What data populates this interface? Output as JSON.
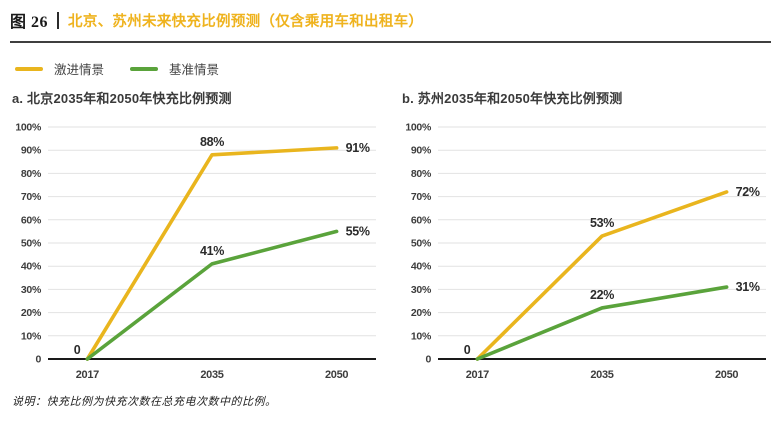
{
  "figure": {
    "label": "图 26",
    "title": "北京、苏州未来快充比例预测（仅含乘用车和出租车）"
  },
  "legend": {
    "items": [
      {
        "label": "激进情景",
        "color": "#E9B51E"
      },
      {
        "label": "基准情景",
        "color": "#5AA33B"
      }
    ]
  },
  "footnote": "说明：快充比例为快充次数在总充电次数中的比例。",
  "colors": {
    "title_accent": "#EFB31E",
    "aggressive_scenario": "#E9B51E",
    "baseline_scenario": "#5AA33B",
    "grid_line": "#E2E2E2",
    "axis_line": "#1A1A1A",
    "header_rule": "#3F3F3F"
  },
  "chart_data": [
    {
      "type": "line",
      "title": "a. 北京2035年和2050年快充比例预测",
      "categories": [
        "2017",
        "2035",
        "2050"
      ],
      "series": [
        {
          "name": "激进情景",
          "color": "#E9B51E",
          "values": [
            0,
            88,
            91
          ],
          "point_labels": [
            "0",
            "88%",
            "91%"
          ]
        },
        {
          "name": "基准情景",
          "color": "#5AA33B",
          "values": [
            0,
            41,
            55
          ],
          "point_labels": [
            "",
            "41%",
            "55%"
          ]
        }
      ],
      "ylim": [
        0,
        100
      ],
      "ytick_step": 10,
      "ytick_labels": [
        "0",
        "10%",
        "20%",
        "30%",
        "40%",
        "50%",
        "60%",
        "70%",
        "80%",
        "90%",
        "100%"
      ],
      "grid": true,
      "legend_position": "shared-top-left"
    },
    {
      "type": "line",
      "title": "b. 苏州2035年和2050年快充比例预测",
      "categories": [
        "2017",
        "2035",
        "2050"
      ],
      "series": [
        {
          "name": "激进情景",
          "color": "#E9B51E",
          "values": [
            0,
            53,
            72
          ],
          "point_labels": [
            "0",
            "53%",
            "72%"
          ]
        },
        {
          "name": "基准情景",
          "color": "#5AA33B",
          "values": [
            0,
            22,
            31
          ],
          "point_labels": [
            "",
            "22%",
            "31%"
          ]
        }
      ],
      "ylim": [
        0,
        100
      ],
      "ytick_step": 10,
      "ytick_labels": [
        "0",
        "10%",
        "20%",
        "30%",
        "40%",
        "50%",
        "60%",
        "70%",
        "80%",
        "90%",
        "100%"
      ],
      "grid": true,
      "legend_position": "shared-top-left"
    }
  ]
}
